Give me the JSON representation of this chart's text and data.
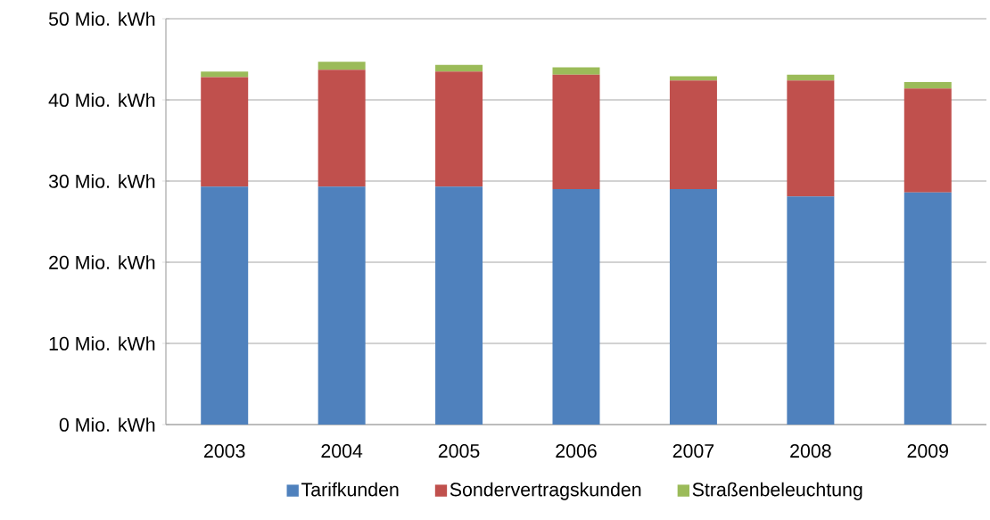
{
  "chart_data": {
    "type": "bar",
    "stacked": true,
    "categories": [
      "2003",
      "2004",
      "2005",
      "2006",
      "2007",
      "2008",
      "2009"
    ],
    "series": [
      {
        "name": "Tarifkunden",
        "color": "#4f81bd",
        "values": [
          29.3,
          29.3,
          29.3,
          29.0,
          29.0,
          28.1,
          28.6
        ]
      },
      {
        "name": "Sondervertragskunden",
        "color": "#c0504d",
        "values": [
          13.5,
          14.4,
          14.2,
          14.1,
          13.4,
          14.3,
          12.8
        ]
      },
      {
        "name": "Straßenbeleuchtung",
        "color": "#9bbb59",
        "values": [
          0.7,
          1.0,
          0.8,
          0.9,
          0.5,
          0.7,
          0.8
        ]
      }
    ],
    "ylim": [
      0,
      50
    ],
    "yticks": [
      {
        "value": 0,
        "label": "0  Mio. kWh"
      },
      {
        "value": 10,
        "label": "10  Mio. kWh"
      },
      {
        "value": 20,
        "label": "20  Mio. kWh"
      },
      {
        "value": 30,
        "label": "30  Mio. kWh"
      },
      {
        "value": 40,
        "label": "40  Mio. kWh"
      },
      {
        "value": 50,
        "label": "50  Mio. kWh"
      }
    ],
    "grid": "y",
    "legend": "bottom"
  }
}
